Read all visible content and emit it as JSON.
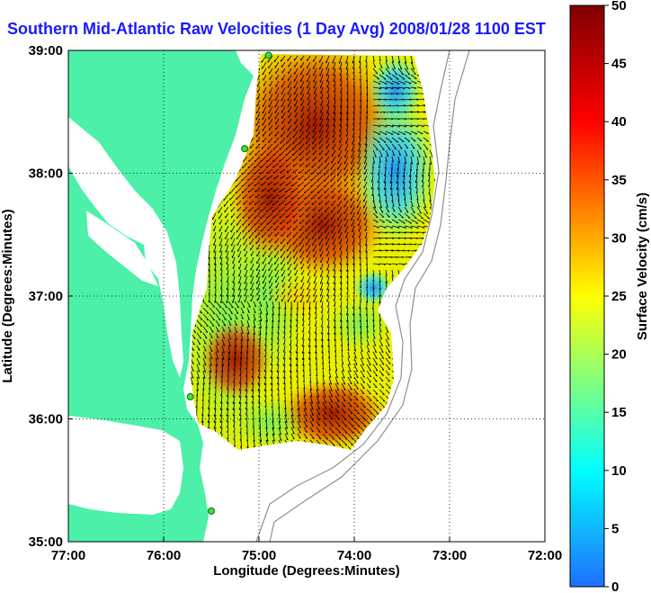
{
  "title": "Southern Mid-Atlantic Raw Velocities (1 Day Avg) 2008/01/28 1100 EST",
  "map": {
    "xlabel": "Longitude (Degrees:Minutes)",
    "ylabel": "Latitude (Degrees:Minutes)",
    "lon_range": [
      -77,
      -72
    ],
    "lat_range": [
      35,
      39
    ],
    "lon_ticks": [
      {
        "value": -77,
        "label": "77:00"
      },
      {
        "value": -76,
        "label": "76:00"
      },
      {
        "value": -75,
        "label": "75:00"
      },
      {
        "value": -74,
        "label": "74:00"
      },
      {
        "value": -73,
        "label": "73:00"
      },
      {
        "value": -72,
        "label": "72:00"
      }
    ],
    "lat_ticks": [
      {
        "value": 35,
        "label": "35:00"
      },
      {
        "value": 36,
        "label": "36:00"
      },
      {
        "value": 37,
        "label": "37:00"
      },
      {
        "value": 38,
        "label": "38:00"
      },
      {
        "value": 39,
        "label": "39:00"
      }
    ],
    "grid": "dotted",
    "land_color": "#4cf0a8",
    "water_color": "#ffffff",
    "arrow_color": "#000000",
    "stations": [
      {
        "lon": -74.9,
        "lat": 38.96
      },
      {
        "lon": -75.15,
        "lat": 38.2
      },
      {
        "lon": -75.72,
        "lat": 36.18
      },
      {
        "lon": -75.5,
        "lat": 35.25
      }
    ]
  },
  "colorbar": {
    "label": "Surface Velocity (cm/s)",
    "range": [
      0,
      50
    ],
    "ticks": [
      {
        "value": 0,
        "label": "0"
      },
      {
        "value": 5,
        "label": "5"
      },
      {
        "value": 10,
        "label": "10"
      },
      {
        "value": 15,
        "label": "15"
      },
      {
        "value": 20,
        "label": "20"
      },
      {
        "value": 25,
        "label": "25"
      },
      {
        "value": 30,
        "label": "30"
      },
      {
        "value": 35,
        "label": "35"
      },
      {
        "value": 40,
        "label": "40"
      },
      {
        "value": 45,
        "label": "45"
      },
      {
        "value": 50,
        "label": "50"
      }
    ],
    "colors": [
      "#1f6fff",
      "#00ffff",
      "#ffff00",
      "#ff0000",
      "#7f0000"
    ]
  }
}
